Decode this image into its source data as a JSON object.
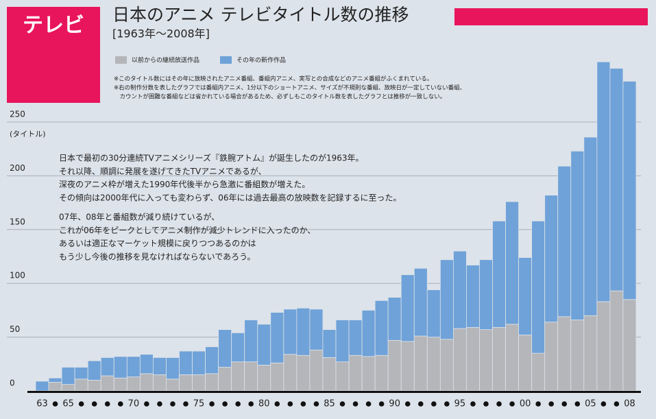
{
  "chart_data": {
    "type": "bar",
    "stacked": true,
    "section_label": "テレビ",
    "title": "日本のアニメ テレビタイトル数の推移",
    "subtitle": "[1963年〜2008年]",
    "notes": [
      "※このタイトル数にはその年に放映されたアニメ番組、番組内アニメ、実写との合成などのアニメ番組がふくまれている。",
      "※右の制作分数を表したグラフでは番組内アニメ、1分以下のショートアニメ、サイズが不規則な番組、放映日が一定していない番組、",
      "　カウントが困難な番組などは省かれている場合があるため、必ずしもこのタイトル数を表したグラフとは推移が一致しない。"
    ],
    "annotations": [
      "日本で最初の30分連続TVアニメシリーズ『鉄腕アトム』が誕生したのが1963年。",
      "それ以降、順調に発展を遂げてきたTVアニメであるが、",
      "深夜のアニメ枠が増えた1990年代後半から急激に番組数が増えた。",
      "その傾向は2000年代に入っても変わらず、06年には過去最高の放映数を記録するに至った。",
      "07年、08年と番組数が減り続けているが、",
      "これが06年をピークとしてアニメ制作が減少トレンドに入ったのか、",
      "あるいは適正なマーケット規模に戻りつつあるのかは",
      "もう少し今後の推移を見なければならないであろう。"
    ],
    "y_label": "(タイトル)",
    "categories": [
      "63",
      null,
      "65",
      null,
      null,
      null,
      null,
      "70",
      null,
      null,
      null,
      null,
      "75",
      null,
      null,
      null,
      null,
      "80",
      null,
      null,
      null,
      null,
      "85",
      null,
      null,
      null,
      null,
      "90",
      null,
      null,
      null,
      null,
      "95",
      null,
      null,
      null,
      null,
      "00",
      null,
      null,
      null,
      null,
      "05",
      null,
      null,
      "08"
    ],
    "series": [
      {
        "name": "以前からの継続放送作品",
        "color": "#b5b6ba",
        "values": [
          0,
          8,
          6,
          11,
          10,
          14,
          12,
          13,
          16,
          15,
          11,
          15,
          15,
          16,
          22,
          27,
          27,
          24,
          26,
          34,
          33,
          38,
          31,
          27,
          33,
          32,
          33,
          47,
          46,
          51,
          50,
          48,
          58,
          59,
          57,
          59,
          62,
          52,
          35,
          64,
          69,
          66,
          70,
          83,
          93,
          85
        ]
      },
      {
        "name": "その年の新作作品",
        "color": "#6fa2d8",
        "values": [
          9,
          4,
          16,
          11,
          18,
          17,
          20,
          19,
          18,
          16,
          20,
          22,
          22,
          25,
          35,
          27,
          39,
          38,
          47,
          42,
          44,
          38,
          26,
          39,
          33,
          43,
          51,
          40,
          62,
          63,
          44,
          74,
          72,
          58,
          65,
          99,
          114,
          72,
          123,
          118,
          140,
          157,
          166,
          223,
          207,
          203
        ]
      }
    ],
    "ylim": [
      0,
      310
    ],
    "yticks": [
      0,
      50,
      100,
      150,
      200,
      250
    ],
    "grid": true,
    "legend": "top-left"
  }
}
